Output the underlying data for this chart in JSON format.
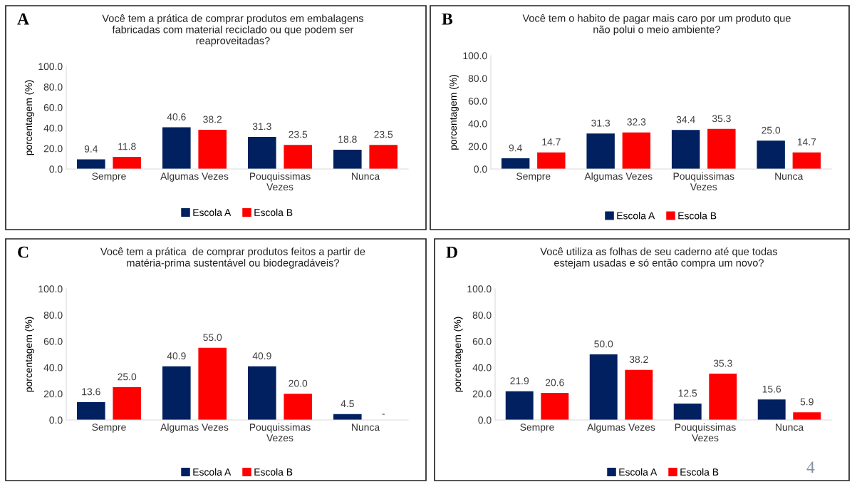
{
  "chart_data": [
    {
      "type": "bar",
      "title": "Você tem a prática de comprar produtos em embalagens\nfabricadas com material reciclado ou que podem ser\nreaproveitadas?",
      "ylabel": "porcentagem (%)",
      "annotations": [
        "A"
      ],
      "categories": [
        "Sempre",
        "Algumas Vezes",
        "Pouquissimas\nVezes",
        "Nunca"
      ],
      "series": [
        {
          "name": "Escola A",
          "color": "#002060",
          "values": [
            9.4,
            40.6,
            31.3,
            18.8
          ]
        },
        {
          "name": "Escola B",
          "color": "#ff0000",
          "values": [
            11.8,
            38.2,
            23.5,
            23.5
          ]
        }
      ],
      "ylim": [
        0,
        100
      ],
      "yticks": [
        {
          "value": 0,
          "label": "0.0"
        },
        {
          "value": 20,
          "label": "20.0"
        },
        {
          "value": 40,
          "label": "40.0"
        },
        {
          "value": 60,
          "label": "60.0"
        },
        {
          "value": 80,
          "label": "80.0"
        },
        {
          "value": 100,
          "label": "100.0"
        }
      ],
      "data_labels": true,
      "legend": "bottom",
      "grid": false
    },
    {
      "type": "bar",
      "title": "Você tem o habito de pagar mais caro por um produto que\nnão polui o meio ambiente?",
      "ylabel": "porcentagem (%)",
      "annotations": [
        "B"
      ],
      "categories": [
        "Sempre",
        "Algumas Vezes",
        "Pouquissimas\nVezes",
        "Nunca"
      ],
      "series": [
        {
          "name": "Escola A",
          "color": "#002060",
          "values": [
            9.4,
            31.3,
            34.4,
            25.0
          ],
          "value_labels": [
            "9.4",
            "31.3",
            "34.4",
            "25.0"
          ]
        },
        {
          "name": "Escola B",
          "color": "#ff0000",
          "values": [
            14.7,
            32.3,
            35.3,
            14.7
          ],
          "value_labels": [
            "14.7",
            "32.3",
            "35.3",
            "14.7"
          ]
        }
      ],
      "ylim": [
        0,
        100
      ],
      "yticks": [
        {
          "value": 0,
          "label": "0.0"
        },
        {
          "value": 20,
          "label": "20.0"
        },
        {
          "value": 40,
          "label": "40.0"
        },
        {
          "value": 60,
          "label": "60.0"
        },
        {
          "value": 80,
          "label": "80.0"
        },
        {
          "value": 100,
          "label": "100.0"
        }
      ],
      "legend": "bottom",
      "grid": false
    },
    {
      "type": "bar",
      "title": "Você tem a prática  de comprar produtos feitos a partir de\nmatéria-prima sustentável ou biodegradáveis?",
      "ylabel": "porcentagem (%)",
      "annotations": [
        "C"
      ],
      "categories": [
        "Sempre",
        "Algumas Vezes",
        "Pouquissimas\nVezes",
        "Nunca"
      ],
      "series": [
        {
          "name": "Escola A",
          "color": "#002060",
          "values": [
            13.6,
            40.9,
            40.9,
            4.5
          ],
          "value_labels": [
            "13.6",
            "40.9",
            "40.9",
            "4.5"
          ]
        },
        {
          "name": "Escola B",
          "color": "#ff0000",
          "values": [
            25.0,
            55.0,
            20.0,
            null
          ],
          "value_labels": [
            "25.0",
            "55.0",
            "20.0",
            "-"
          ]
        }
      ],
      "ylim": [
        0,
        100
      ],
      "yticks": [
        {
          "value": 0,
          "label": "0.0"
        },
        {
          "value": 20,
          "label": "20.0"
        },
        {
          "value": 40,
          "label": "40.0"
        },
        {
          "value": 60,
          "label": "60.0"
        },
        {
          "value": 80,
          "label": "80.0"
        },
        {
          "value": 100,
          "label": "100.0"
        }
      ],
      "legend": "bottom",
      "grid": false
    },
    {
      "type": "bar",
      "title": "Você utiliza as folhas de seu caderno até que todas\nestejam usadas e só então compra um novo?",
      "ylabel": "porcentagem (%)",
      "annotations": [
        "D",
        "4"
      ],
      "categories": [
        "Sempre",
        "Algumas Vezes",
        "Pouquissimas\nVezes",
        "Nunca"
      ],
      "series": [
        {
          "name": "Escola A",
          "color": "#002060",
          "values": [
            21.9,
            50.0,
            12.5,
            15.6
          ],
          "value_labels": [
            "21.9",
            "50.0",
            "12.5",
            "15.6"
          ]
        },
        {
          "name": "Escola B",
          "color": "#ff0000",
          "values": [
            20.6,
            38.2,
            35.3,
            5.9
          ],
          "value_labels": [
            "20.6",
            "38.2",
            "35.3",
            "5.9"
          ]
        }
      ],
      "ylim": [
        0,
        100
      ],
      "yticks": [
        {
          "value": 0,
          "label": "0.0"
        },
        {
          "value": 20,
          "label": "20.0"
        },
        {
          "value": 40,
          "label": "40.0"
        },
        {
          "value": 60,
          "label": "60.0"
        },
        {
          "value": 80,
          "label": "80.0"
        },
        {
          "value": 100,
          "label": "100.0"
        }
      ],
      "legend": "bottom",
      "grid": false
    }
  ]
}
